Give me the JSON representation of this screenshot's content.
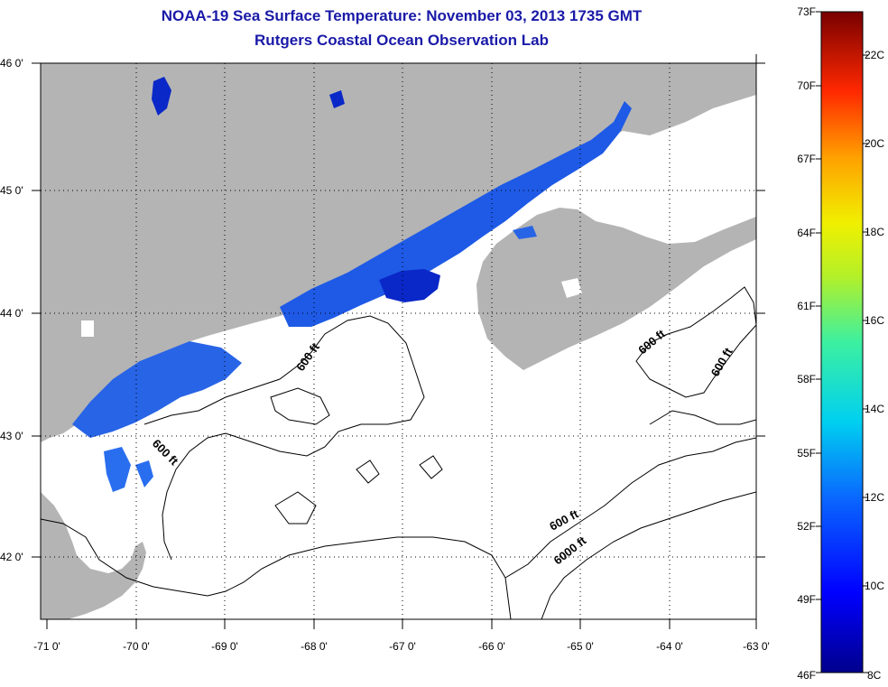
{
  "header": {
    "title": "NOAA-19 Sea Surface Temperature:  November 03, 2013 1735 GMT",
    "subtitle": "Rutgers Coastal Ocean Observation Lab"
  },
  "map": {
    "lat_labels": [
      "46 0'",
      "45 0'",
      "44 0'",
      "43 0'",
      "42 0'"
    ],
    "lon_labels": [
      "-71 0'",
      "-70 0'",
      "-69 0'",
      "-68 0'",
      "-67 0'",
      "-66 0'",
      "-65 0'",
      "-64 0'",
      "-63 0'"
    ],
    "contours": {
      "c1": "600 ft",
      "c2": "600 ft",
      "c3": "600 ft",
      "c4": "600 ft",
      "c5": "600 ft",
      "c6": "6000 ft"
    },
    "colors": {
      "land": "#b4b4b4",
      "cloud": "#ffffff",
      "water_cold": "#1e50e8"
    }
  },
  "colorbar": {
    "f_labels": [
      "73F",
      "70F",
      "67F",
      "64F",
      "61F",
      "58F",
      "55F",
      "52F",
      "49F",
      "46F"
    ],
    "c_labels": [
      "22C",
      "20C",
      "18C",
      "16C",
      "14C",
      "12C",
      "10C",
      "8C"
    ],
    "range_f": [
      46,
      73
    ],
    "range_c": [
      8,
      23
    ]
  }
}
